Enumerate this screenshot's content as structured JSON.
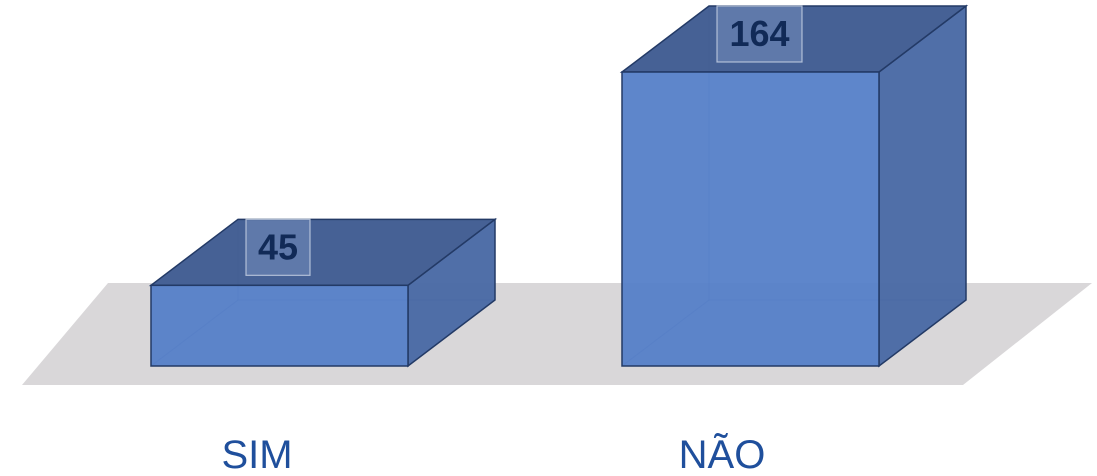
{
  "chart_data": {
    "type": "bar",
    "style": "3d-column",
    "categories": [
      "SIM",
      "NÃO"
    ],
    "values": [
      45,
      164
    ],
    "title": "",
    "xlabel": "",
    "ylabel": "",
    "ylim": [
      0,
      164
    ],
    "grid": false,
    "legend": "none",
    "data_labels": [
      "45",
      "164"
    ]
  },
  "colors": {
    "bar_front": "#5580c8",
    "bar_top": "#425e93",
    "bar_side": "#4a6aa5",
    "bar_edge": "#233a66",
    "floor": "#d9d7d9",
    "data_label_text": "#112a57",
    "data_label_box": "#7f97c3",
    "category_text": "#1f4f9c"
  }
}
